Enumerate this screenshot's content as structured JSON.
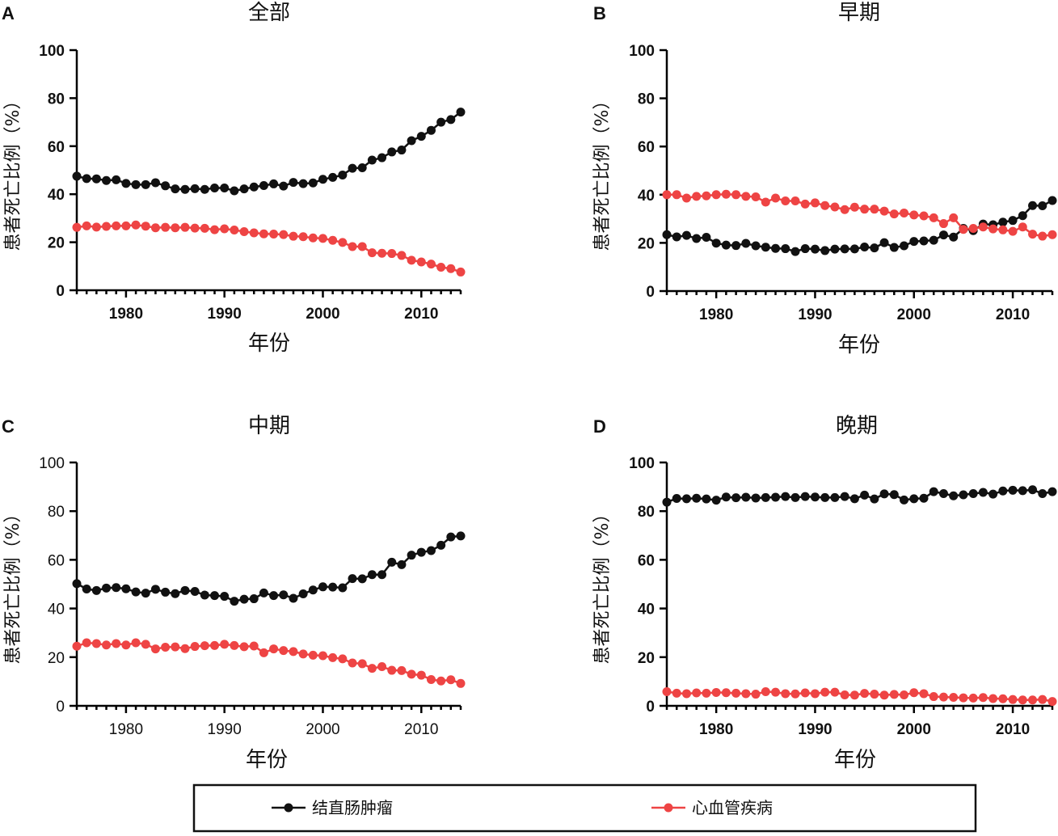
{
  "legend": {
    "items": [
      {
        "label": "结直肠肿瘤",
        "color": "#111111"
      },
      {
        "label": "心血管疾病",
        "color": "#ee4444"
      }
    ]
  },
  "chart_data": [
    {
      "type": "line",
      "panel": "A",
      "title": "全部",
      "xlabel": "年份",
      "ylabel": "患者死亡比例（%）",
      "xlim": [
        1975,
        2014
      ],
      "ylim": [
        0,
        100
      ],
      "xticks": [
        1980,
        1990,
        2000,
        2010
      ],
      "yticks": [
        0,
        20,
        40,
        60,
        80,
        100
      ],
      "x": [
        1975,
        1976,
        1977,
        1978,
        1979,
        1980,
        1981,
        1982,
        1983,
        1984,
        1985,
        1986,
        1987,
        1988,
        1989,
        1990,
        1991,
        1992,
        1993,
        1994,
        1995,
        1996,
        1997,
        1998,
        1999,
        2000,
        2001,
        2002,
        2003,
        2004,
        2005,
        2006,
        2007,
        2008,
        2009,
        2010,
        2011,
        2012,
        2013,
        2014
      ],
      "series": [
        {
          "name": "结直肠肿瘤",
          "color": "#111111",
          "values": [
            47.5,
            46.5,
            46.4,
            45.7,
            46,
            44.5,
            44,
            44,
            44.8,
            43.5,
            42.2,
            42,
            42.3,
            42,
            42.6,
            42.6,
            41.4,
            42.2,
            43,
            43.6,
            44.3,
            43.4,
            44.9,
            44.4,
            44.7,
            46.2,
            47,
            48,
            50.8,
            51,
            54.2,
            55.2,
            57.6,
            58.4,
            62.3,
            64.1,
            66.6,
            70,
            71.1,
            74.2
          ]
        },
        {
          "name": "心血管疾病",
          "color": "#ee4444",
          "values": [
            26.2,
            26.8,
            26.3,
            26.6,
            26.8,
            26.8,
            27.2,
            26.7,
            26,
            26.2,
            26,
            26.2,
            25.9,
            25.8,
            25.2,
            25.6,
            25.1,
            24.4,
            23.9,
            23.5,
            23.4,
            23.2,
            22.5,
            22.3,
            21.8,
            21.6,
            20.8,
            19.9,
            18.2,
            18.2,
            15.6,
            15.4,
            15.3,
            14.5,
            12.5,
            11.8,
            10.9,
            9.6,
            9,
            7.6
          ]
        }
      ]
    },
    {
      "type": "line",
      "panel": "B",
      "title": "早期",
      "xlabel": "年份",
      "ylabel": "患者死亡比例（%）",
      "xlim": [
        1975,
        2014
      ],
      "ylim": [
        0,
        100
      ],
      "xticks": [
        1980,
        1990,
        2000,
        2010
      ],
      "yticks": [
        0,
        20,
        40,
        60,
        80,
        100
      ],
      "x": [
        1975,
        1976,
        1977,
        1978,
        1979,
        1980,
        1981,
        1982,
        1983,
        1984,
        1985,
        1986,
        1987,
        1988,
        1989,
        1990,
        1991,
        1992,
        1993,
        1994,
        1995,
        1996,
        1997,
        1998,
        1999,
        2000,
        2001,
        2002,
        2003,
        2004,
        2005,
        2006,
        2007,
        2008,
        2009,
        2010,
        2011,
        2012,
        2013,
        2014
      ],
      "series": [
        {
          "name": "结直肠肿瘤",
          "color": "#111111",
          "values": [
            23.4,
            22.5,
            23.1,
            21.8,
            22.3,
            19.9,
            19.1,
            18.9,
            19.8,
            18.8,
            18.2,
            17.7,
            17.6,
            16.4,
            17.6,
            17.4,
            16.8,
            17.4,
            17.5,
            17.5,
            18.3,
            17.9,
            20.1,
            18.1,
            18.8,
            20.6,
            20.8,
            21.1,
            23.3,
            22.4,
            26,
            25.1,
            27.8,
            27.5,
            28.6,
            29.3,
            31.3,
            35.5,
            35.4,
            37.6
          ]
        },
        {
          "name": "心血管疾病",
          "color": "#ee4444",
          "values": [
            40,
            40,
            38.6,
            39.3,
            39.5,
            40,
            40.2,
            40,
            39.3,
            39.1,
            36.9,
            38.6,
            37.4,
            37.4,
            36.1,
            36.6,
            35.5,
            34.9,
            33.8,
            34.8,
            34,
            34,
            33.2,
            32,
            32.4,
            31.6,
            31.2,
            30.4,
            28,
            30.4,
            25.6,
            26,
            26.6,
            25.8,
            25.4,
            24.8,
            26.6,
            23.6,
            22.8,
            23.4
          ]
        }
      ]
    },
    {
      "type": "line",
      "panel": "C",
      "title": "中期",
      "xlabel": "年份",
      "ylabel": "患者死亡比例（%）",
      "xlim": [
        1975,
        2014
      ],
      "ylim": [
        0,
        100
      ],
      "xticks": [
        1980,
        1990,
        2000,
        2010
      ],
      "yticks": [
        0,
        20,
        40,
        60,
        80,
        100
      ],
      "x": [
        1975,
        1976,
        1977,
        1978,
        1979,
        1980,
        1981,
        1982,
        1983,
        1984,
        1985,
        1986,
        1987,
        1988,
        1989,
        1990,
        1991,
        1992,
        1993,
        1994,
        1995,
        1996,
        1997,
        1998,
        1999,
        2000,
        2001,
        2002,
        2003,
        2004,
        2005,
        2006,
        2007,
        2008,
        2009,
        2010,
        2011,
        2012,
        2013,
        2014
      ],
      "series": [
        {
          "name": "结直肠肿瘤",
          "color": "#111111",
          "values": [
            50.2,
            48,
            47.4,
            48.4,
            48.6,
            48.1,
            46.8,
            46.3,
            47.9,
            46.7,
            46.1,
            47.4,
            47,
            45.5,
            45.3,
            45,
            43,
            43.8,
            44,
            46.4,
            45.3,
            45.6,
            44.2,
            46,
            47.6,
            48.9,
            48.8,
            48.5,
            52.3,
            52.2,
            53.9,
            53.9,
            59,
            58,
            61.9,
            63.1,
            63.8,
            66,
            69.4,
            69.8
          ]
        },
        {
          "name": "心血管疾病",
          "color": "#ee4444",
          "values": [
            24.5,
            25.9,
            25.6,
            25,
            25.6,
            25,
            25.9,
            25.3,
            23.4,
            24.1,
            24.2,
            23.5,
            24.4,
            24.7,
            24.8,
            25.3,
            24.8,
            24.3,
            24.6,
            21.8,
            23.4,
            22.7,
            22.3,
            21.3,
            20.8,
            20.6,
            19.8,
            19.3,
            17.6,
            17.3,
            15.4,
            16.1,
            14.6,
            14.5,
            13,
            12.6,
            10.8,
            10.2,
            10.7,
            9.2
          ]
        }
      ]
    },
    {
      "type": "line",
      "panel": "D",
      "title": "晚期",
      "xlabel": "年份",
      "ylabel": "患者死亡比例（%）",
      "xlim": [
        1975,
        2014
      ],
      "ylim": [
        0,
        100
      ],
      "xticks": [
        1980,
        1990,
        2000,
        2010
      ],
      "yticks": [
        0,
        20,
        40,
        60,
        80,
        100
      ],
      "x": [
        1975,
        1976,
        1977,
        1978,
        1979,
        1980,
        1981,
        1982,
        1983,
        1984,
        1985,
        1986,
        1987,
        1988,
        1989,
        1990,
        1991,
        1992,
        1993,
        1994,
        1995,
        1996,
        1997,
        1998,
        1999,
        2000,
        2001,
        2002,
        2003,
        2004,
        2005,
        2006,
        2007,
        2008,
        2009,
        2010,
        2011,
        2012,
        2013,
        2014
      ],
      "series": [
        {
          "name": "结直肠肿瘤",
          "color": "#111111",
          "values": [
            83.7,
            85.2,
            85.1,
            85.3,
            85,
            84.5,
            85.8,
            85.5,
            85.7,
            85.4,
            85.6,
            85.7,
            86,
            85.6,
            86,
            85.8,
            85.6,
            85.6,
            86,
            85.1,
            86.6,
            85,
            87.1,
            86.8,
            84.6,
            85.1,
            85.3,
            88,
            87.2,
            86.3,
            86.7,
            87.2,
            87.7,
            87,
            88.3,
            88.6,
            88.4,
            88.8,
            87.2,
            88
          ]
        },
        {
          "name": "心血管疾病",
          "color": "#ee4444",
          "values": [
            5.8,
            5.2,
            5,
            5.3,
            5.2,
            5.5,
            5.4,
            5.2,
            5,
            4.8,
            5.8,
            5.6,
            5,
            4.9,
            5.3,
            5,
            5.6,
            5.6,
            4.5,
            4.4,
            5.1,
            4.8,
            4.4,
            4.7,
            4.5,
            5.4,
            5,
            3.8,
            3.6,
            3.5,
            3.3,
            3.2,
            3.4,
            3,
            2.9,
            2.6,
            2.4,
            2.4,
            2.6,
            1.8
          ]
        }
      ]
    }
  ]
}
